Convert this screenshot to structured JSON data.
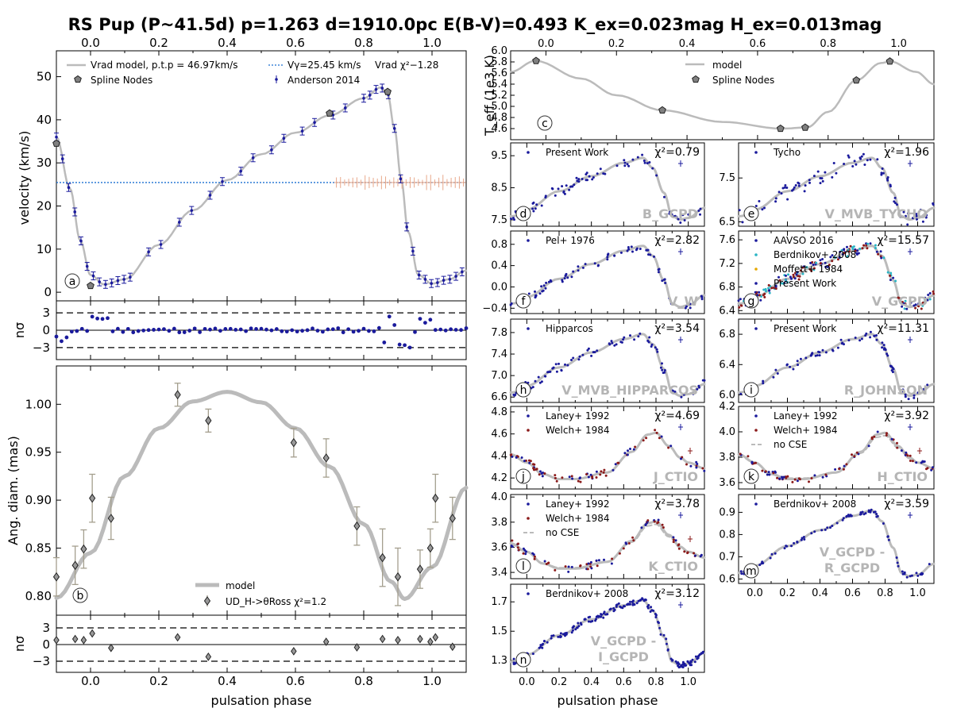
{
  "title": "RS Pup (P~41.5d) p=1.263 d=1910.0pc E(B-V)=0.493 K_ex=0.023mag H_ex=0.013mag",
  "colors": {
    "model": "#bbbbbb",
    "data": "#1a1a9c",
    "welch": "#8b1a1a",
    "berdnikov": "#2ab5c5",
    "moffett": "#e6a800",
    "vgamma": "#1a6fd0",
    "crosses": "#e8a88a",
    "watermark": "#b5b5b5"
  },
  "panels": {
    "a": {
      "badge": "a",
      "ylabel": "velocity (km/s)",
      "xlim": [
        -0.1,
        1.1
      ],
      "ylim": [
        -2,
        56
      ],
      "xticks": [
        "0.0",
        "0.2",
        "0.4",
        "0.6",
        "0.8",
        "1.0"
      ],
      "yticks": [
        "0",
        "10",
        "20",
        "30",
        "40",
        "50"
      ],
      "legend": {
        "model": "Vrad model, p.t.p = 46.97km/s",
        "nodes": "Spline Nodes",
        "vgamma": "Vγ=25.45 km/s",
        "chi2": "Vrad χ²−1.28",
        "data": "Anderson 2014"
      },
      "vgamma": 25.45
    },
    "a_res": {
      "ylabel": "nσ",
      "yticks": [
        "3",
        "0",
        "−3"
      ]
    },
    "b": {
      "badge": "b",
      "ylabel": "Ang. diam. (mas)",
      "xlim": [
        -0.1,
        1.1
      ],
      "ylim": [
        0.78,
        1.04
      ],
      "yticks": [
        "0.80",
        "0.85",
        "0.90",
        "0.95",
        "1.00"
      ],
      "legend": {
        "model": "model",
        "data": "UD_H->θRoss χ²=1.2"
      },
      "points": [
        {
          "x": -0.1,
          "y": 0.82,
          "e": 0.02
        },
        {
          "x": -0.045,
          "y": 0.832,
          "e": 0.02
        },
        {
          "x": -0.02,
          "y": 0.849,
          "e": 0.02
        },
        {
          "x": 0.005,
          "y": 0.902,
          "e": 0.025
        },
        {
          "x": 0.06,
          "y": 0.881,
          "e": 0.022
        },
        {
          "x": 0.255,
          "y": 1.01,
          "e": 0.012
        },
        {
          "x": 0.345,
          "y": 0.983,
          "e": 0.012
        },
        {
          "x": 0.595,
          "y": 0.96,
          "e": 0.015
        },
        {
          "x": 0.69,
          "y": 0.944,
          "e": 0.02
        },
        {
          "x": 0.78,
          "y": 0.873,
          "e": 0.02
        },
        {
          "x": 0.855,
          "y": 0.84,
          "e": 0.03
        },
        {
          "x": 0.9,
          "y": 0.82,
          "e": 0.03
        },
        {
          "x": 0.965,
          "y": 0.828,
          "e": 0.02
        },
        {
          "x": 0.995,
          "y": 0.85,
          "e": 0.02
        },
        {
          "x": 1.01,
          "y": 0.902,
          "e": 0.025
        },
        {
          "x": 1.06,
          "y": 0.881,
          "e": 0.022
        }
      ]
    },
    "b_res": {
      "ylabel": "nσ",
      "yticks": [
        "3",
        "0",
        "−3"
      ]
    },
    "c": {
      "badge": "c",
      "ylabel": "T_eff (1e3 K)",
      "xlim": [
        -0.1,
        1.1
      ],
      "ylim": [
        4.4,
        6.0
      ],
      "xticks": [
        "0.0",
        "0.2",
        "0.4",
        "0.6",
        "0.8",
        "1.0"
      ],
      "yticks": [
        "4.6",
        "4.8",
        "5.0",
        "5.2",
        "5.4",
        "5.6",
        "5.8",
        "6.0"
      ],
      "legend": {
        "model": "model",
        "nodes": "Spline Nodes"
      },
      "nodes": [
        {
          "x": -0.028,
          "y": 5.82
        },
        {
          "x": 0.33,
          "y": 4.93
        },
        {
          "x": 0.665,
          "y": 4.6
        },
        {
          "x": 0.735,
          "y": 4.62
        },
        {
          "x": 0.88,
          "y": 5.47
        },
        {
          "x": 0.975,
          "y": 5.81
        }
      ]
    },
    "d": {
      "badge": "d",
      "chi2": "χ²=0.79",
      "watermark": "B_GCPD",
      "legend": [
        "Present Work"
      ],
      "yticks": [
        "9.5",
        "8.5",
        "7.5"
      ]
    },
    "e": {
      "badge": "e",
      "chi2": "χ²=1.96",
      "watermark": "V_MVB_TYCHO",
      "legend": [
        "Tycho"
      ],
      "yticks": [
        "7.5",
        "6.5"
      ]
    },
    "f": {
      "badge": "f",
      "chi2": "χ²=2.82",
      "watermark": "V_W",
      "legend": [
        "Pel+ 1976"
      ],
      "yticks": [
        "0.8",
        "0.4",
        "0.0",
        "−0.4"
      ]
    },
    "g": {
      "badge": "g",
      "chi2": "χ²=15.57",
      "watermark": "V_GCPD",
      "legend": [
        "AAVSO 2016",
        "Berdnikov+ 2008",
        "Moffett+ 1984",
        "Present Work"
      ],
      "yticks": [
        "7.6",
        "7.2",
        "6.8",
        "6.4"
      ]
    },
    "h": {
      "badge": "h",
      "chi2": "χ²=3.54",
      "watermark": "V_MVB_HIPPARCOS",
      "legend": [
        "Hipparcos"
      ],
      "yticks": [
        "7.8",
        "7.4",
        "7.0",
        "6.6"
      ]
    },
    "i": {
      "badge": "i",
      "chi2": "χ²=11.31",
      "watermark": "R_JOHNSON",
      "legend": [
        "Present Work"
      ],
      "yticks": [
        "6.8",
        "6.4",
        "6.0"
      ]
    },
    "j": {
      "badge": "j",
      "chi2": "χ²=4.69",
      "watermark": "J_CTIO",
      "legend": [
        "Laney+ 1992",
        "Welch+ 1984"
      ],
      "yticks": [
        "4.8",
        "4.6",
        "4.4",
        "4.2"
      ]
    },
    "k": {
      "badge": "k",
      "chi2": "χ²=3.92",
      "watermark": "H_CTIO",
      "legend": [
        "Laney+ 1992",
        "Welch+ 1984",
        "no CSE"
      ],
      "yticks": [
        "4.2",
        "4.0",
        "3.8",
        "3.6"
      ]
    },
    "l": {
      "badge": "l",
      "chi2": "χ²=3.78",
      "watermark": "K_CTIO",
      "legend": [
        "Laney+ 1992",
        "Welch+ 1984",
        "no CSE"
      ],
      "yticks": [
        "4.0",
        "3.8",
        "3.6",
        "3.4"
      ]
    },
    "m": {
      "badge": "m",
      "chi2": "χ²=3.59",
      "watermark": [
        "V_GCPD -",
        "R_GCPD"
      ],
      "legend": [
        "Berdnikov+ 2008"
      ],
      "yticks": [
        "0.9",
        "0.8",
        "0.7",
        "0.6"
      ]
    },
    "n": {
      "badge": "n",
      "chi2": "χ²=3.12",
      "watermark": [
        "V_GCPD -",
        "I_GCPD"
      ],
      "legend": [
        "Berdnikov+ 2008"
      ],
      "yticks": [
        "1.7",
        "1.5",
        "1.3"
      ]
    }
  },
  "xlabel": "pulsation phase",
  "phase_ticks": [
    "0.0",
    "0.2",
    "0.4",
    "0.6",
    "0.8",
    "1.0"
  ],
  "chart_data": [
    {
      "type": "line",
      "panel": "a",
      "ylabel": "velocity (km/s)",
      "xlim": [
        -0.1,
        1.1
      ],
      "ylim": [
        -2,
        56
      ],
      "series": [
        {
          "name": "Vrad model, p.t.p = 46.97km/s",
          "x": [
            -0.1,
            -0.05,
            0.0,
            0.05,
            0.1,
            0.2,
            0.3,
            0.4,
            0.5,
            0.6,
            0.7,
            0.8,
            0.85,
            0.88,
            0.9,
            0.92,
            0.95,
            1.0,
            1.05,
            1.1
          ],
          "y": [
            36,
            18,
            4,
            1.8,
            3,
            11,
            19,
            26,
            32,
            37,
            41,
            45,
            47.5,
            40,
            30,
            16,
            4,
            2,
            3,
            5
          ]
        },
        {
          "name": "Spline Nodes",
          "x": [
            -0.1,
            0.0,
            0.7,
            0.87
          ],
          "y": [
            34.5,
            1.5,
            41.5,
            46.5
          ]
        },
        {
          "name": "Vγ=25.45 km/s",
          "y": [
            25.45
          ]
        }
      ]
    },
    {
      "type": "scatter",
      "panel": "b",
      "ylabel": "Ang. diam. (mas)",
      "xlim": [
        -0.1,
        1.1
      ],
      "ylim": [
        0.78,
        1.04
      ],
      "series": [
        {
          "name": "model",
          "x": [
            -0.1,
            0.0,
            0.1,
            0.2,
            0.3,
            0.4,
            0.5,
            0.6,
            0.7,
            0.8,
            0.9,
            0.92,
            1.0,
            1.1
          ],
          "y": [
            0.798,
            0.845,
            0.925,
            0.975,
            1.003,
            1.013,
            1.002,
            0.975,
            0.935,
            0.875,
            0.81,
            0.797,
            0.83,
            0.913
          ]
        },
        {
          "name": "UD_H->θRoss χ²=1.2",
          "x": [
            -0.1,
            -0.045,
            -0.02,
            0.005,
            0.06,
            0.255,
            0.345,
            0.595,
            0.69,
            0.78,
            0.855,
            0.9,
            0.965,
            0.995,
            1.01,
            1.06
          ],
          "y": [
            0.82,
            0.832,
            0.849,
            0.902,
            0.881,
            1.01,
            0.983,
            0.96,
            0.944,
            0.873,
            0.84,
            0.82,
            0.828,
            0.85,
            0.902,
            0.881
          ]
        }
      ]
    },
    {
      "type": "line",
      "panel": "c",
      "ylabel": "T_eff (1e3 K)",
      "xlim": [
        -0.1,
        1.1
      ],
      "ylim": [
        4.4,
        6.0
      ],
      "series": [
        {
          "name": "model",
          "x": [
            -0.1,
            -0.03,
            0.1,
            0.2,
            0.33,
            0.5,
            0.67,
            0.74,
            0.8,
            0.88,
            0.95,
            0.975,
            1.05,
            1.1
          ],
          "y": [
            5.62,
            5.82,
            5.5,
            5.2,
            4.93,
            4.72,
            4.6,
            4.62,
            4.9,
            5.47,
            5.78,
            5.81,
            5.62,
            5.4
          ]
        },
        {
          "name": "Spline Nodes",
          "x": [
            -0.028,
            0.33,
            0.665,
            0.735,
            0.88,
            0.975
          ],
          "y": [
            5.82,
            4.93,
            4.6,
            4.62,
            5.47,
            5.81
          ]
        }
      ]
    }
  ]
}
